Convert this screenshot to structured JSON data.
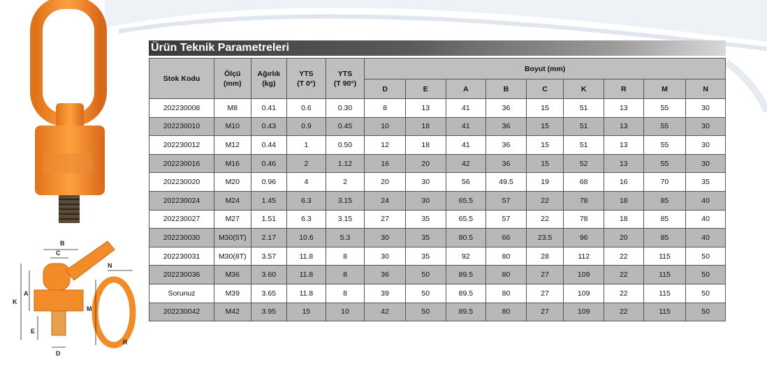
{
  "section_title": "Ürün Teknik Parametreleri",
  "headers": {
    "stock_code": "Stok Kodu",
    "size": [
      "Ölçü",
      "(mm)"
    ],
    "weight": [
      "Ağırlık",
      "(kg)"
    ],
    "wll0": [
      "YTS",
      "(T 0°)"
    ],
    "wll90": [
      "YTS",
      "(T 90°)"
    ],
    "dimensions_group": "Boyut (mm)",
    "dimension_cols": [
      "D",
      "E",
      "A",
      "B",
      "C",
      "K",
      "R",
      "M",
      "N"
    ]
  },
  "rows": [
    [
      "202230008",
      "M8",
      "0.41",
      "0.6",
      "0.30",
      "8",
      "13",
      "41",
      "36",
      "15",
      "51",
      "13",
      "55",
      "30"
    ],
    [
      "202230010",
      "M10",
      "0.43",
      "0.9",
      "0.45",
      "10",
      "18",
      "41",
      "36",
      "15",
      "51",
      "13",
      "55",
      "30"
    ],
    [
      "202230012",
      "M12",
      "0.44",
      "1",
      "0.50",
      "12",
      "18",
      "41",
      "36",
      "15",
      "51",
      "13",
      "55",
      "30"
    ],
    [
      "202230016",
      "M16",
      "0.46",
      "2",
      "1.12",
      "16",
      "20",
      "42",
      "36",
      "15",
      "52",
      "13",
      "55",
      "30"
    ],
    [
      "202230020",
      "M20",
      "0.96",
      "4",
      "2",
      "20",
      "30",
      "56",
      "49.5",
      "19",
      "68",
      "16",
      "70",
      "35"
    ],
    [
      "202230024",
      "M24",
      "1.45",
      "6.3",
      "3.15",
      "24",
      "30",
      "65.5",
      "57",
      "22",
      "78",
      "18",
      "85",
      "40"
    ],
    [
      "202230027",
      "M27",
      "1.51",
      "6.3",
      "3.15",
      "27",
      "35",
      "65.5",
      "57",
      "22",
      "78",
      "18",
      "85",
      "40"
    ],
    [
      "202230030",
      "M30(5T)",
      "2.17",
      "10.6",
      "5.3",
      "30",
      "35",
      "80.5",
      "66",
      "23.5",
      "96",
      "20",
      "85",
      "40"
    ],
    [
      "202230031",
      "M30(8T)",
      "3.57",
      "11.8",
      "8",
      "30",
      "35",
      "92",
      "80",
      "28",
      "112",
      "22",
      "115",
      "50"
    ],
    [
      "202230036",
      "M36",
      "3.60",
      "11.8",
      "8",
      "36",
      "50",
      "89.5",
      "80",
      "27",
      "109",
      "22",
      "115",
      "50"
    ],
    [
      "Sorunuz",
      "M39",
      "3.65",
      "11.8",
      "8",
      "39",
      "50",
      "89.5",
      "80",
      "27",
      "109",
      "22",
      "115",
      "50"
    ],
    [
      "202230042",
      "M42",
      "3.95",
      "15",
      "10",
      "42",
      "50",
      "89.5",
      "80",
      "27",
      "109",
      "22",
      "115",
      "50"
    ]
  ],
  "diagram_labels": [
    "B",
    "C",
    "K",
    "A",
    "N",
    "M",
    "E",
    "D",
    "R"
  ],
  "colors": {
    "product_orange": "#f28c28",
    "header_gray": "#bfbfbf",
    "row_alt_gray": "#b8b8b8"
  }
}
